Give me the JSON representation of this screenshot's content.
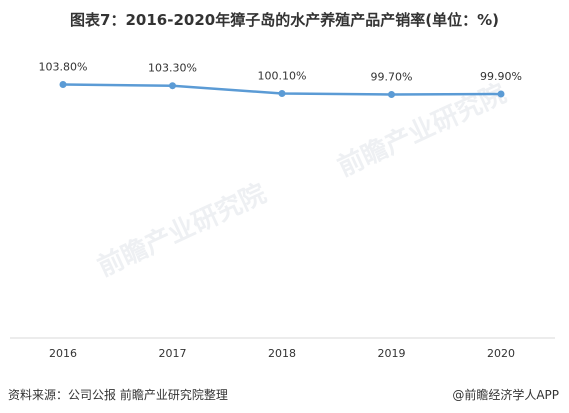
{
  "title": "图表7：2016-2020年獐子岛的水产养殖产品产销率(单位：%)",
  "source": "资料来源：公司公报 前瞻产业研究院整理",
  "brand": "@前瞻经济学人APP",
  "watermark": "前瞻产业研究院",
  "colors": {
    "line": "#5b9bd5",
    "axis": "#d9d9d9",
    "text": "#333333"
  },
  "chart_data": {
    "type": "line",
    "title": "图表7：2016-2020年獐子岛的水产养殖产品产销率(单位：%)",
    "categories": [
      "2016",
      "2017",
      "2018",
      "2019",
      "2020"
    ],
    "series": [
      {
        "values": [
          103.8,
          103.3,
          100.1,
          99.7,
          99.9
        ],
        "labels": [
          "103.80%",
          "103.30%",
          "100.10%",
          "99.70%",
          "99.90%"
        ]
      }
    ],
    "ylim": [
      0,
      104
    ],
    "grid": false,
    "legend": "none"
  }
}
